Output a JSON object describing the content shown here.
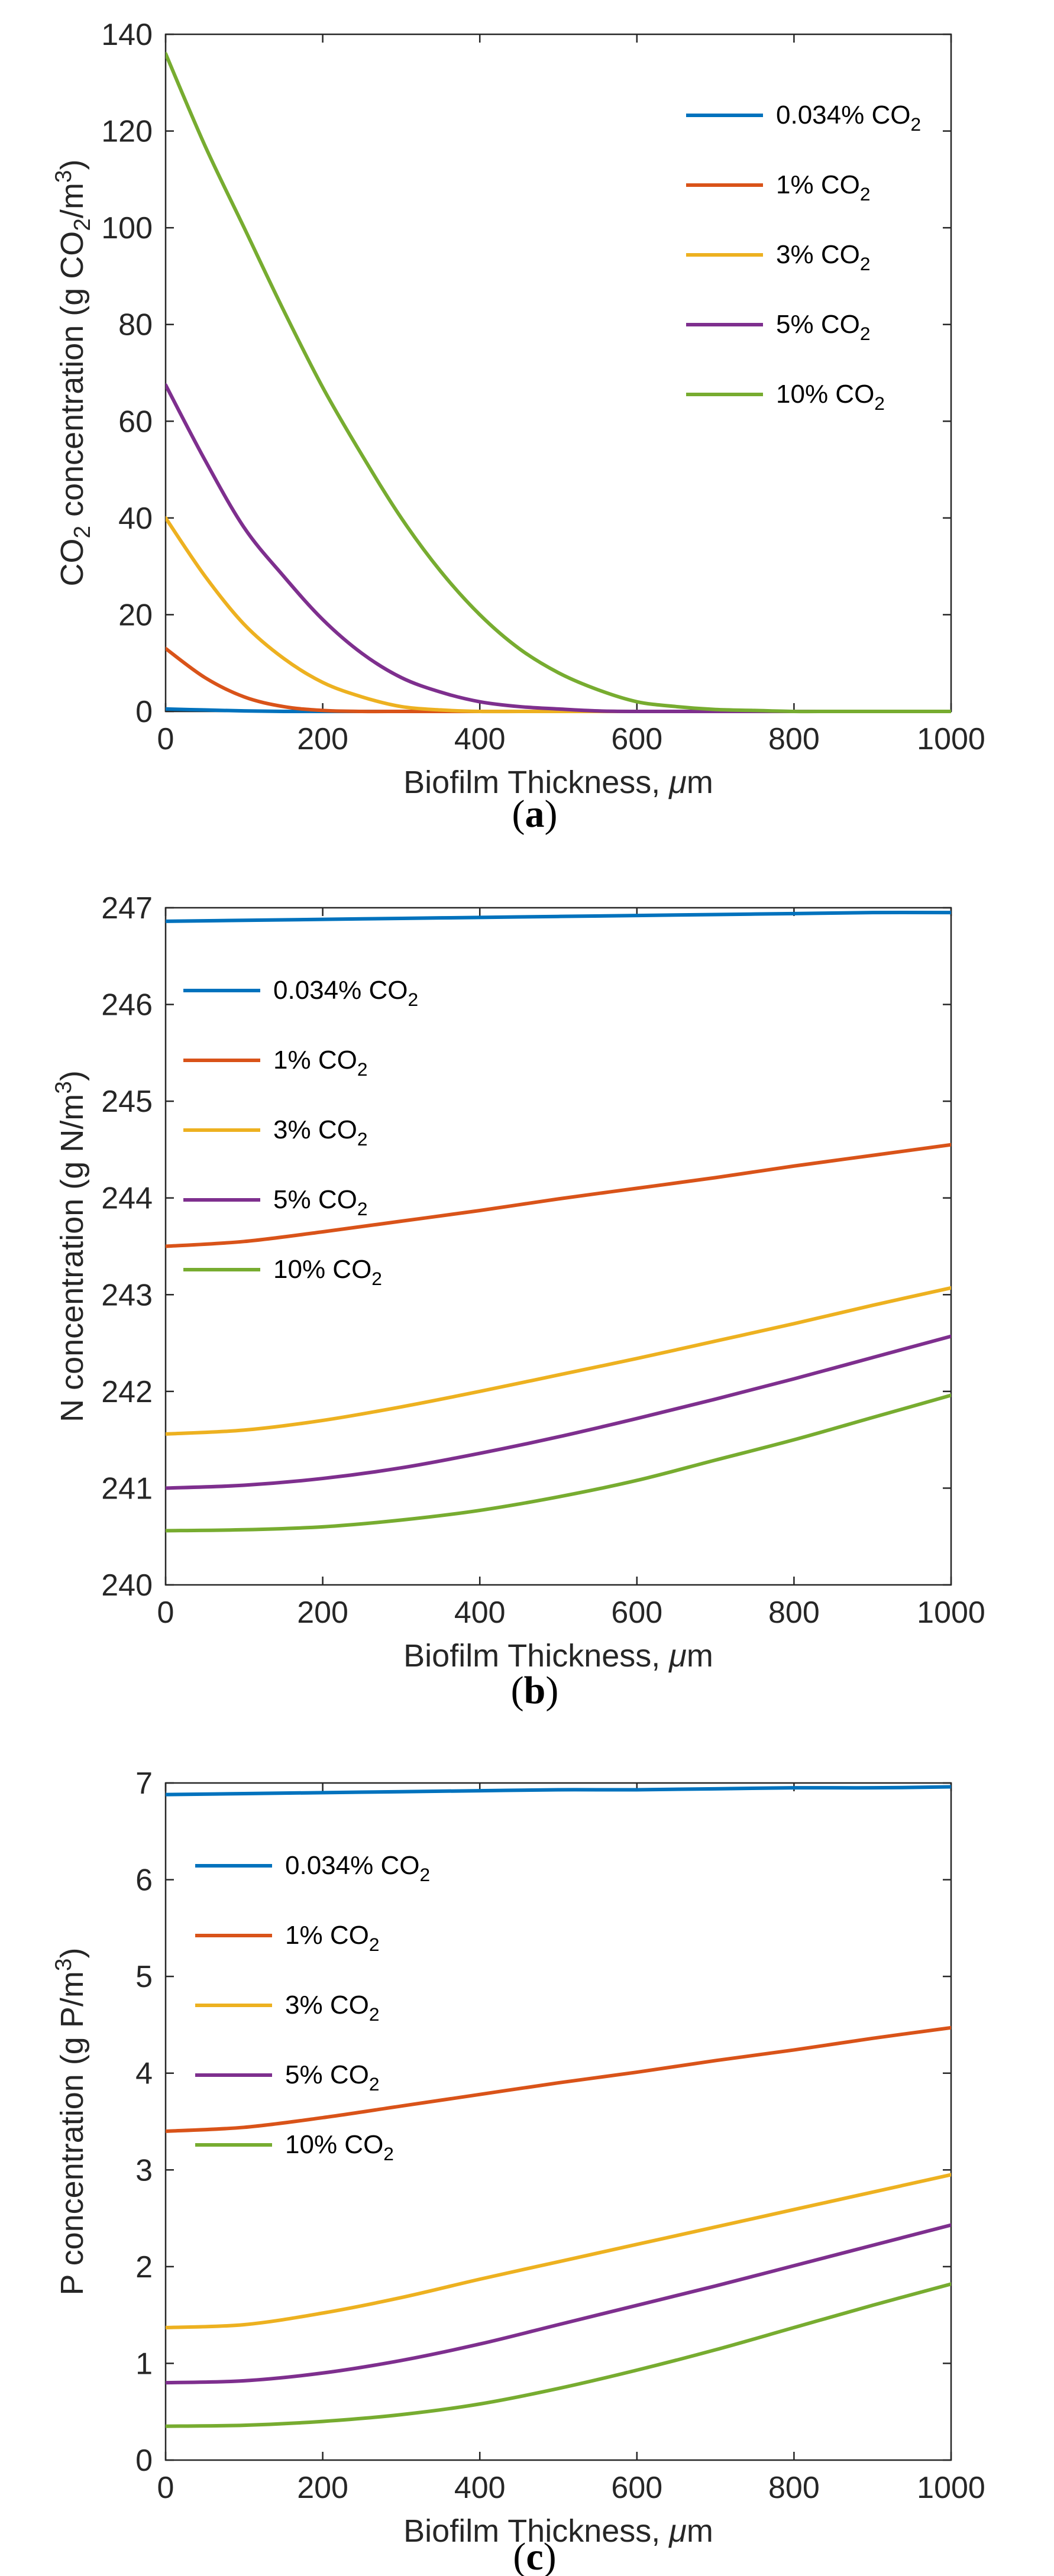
{
  "colors": {
    "series_0034": "#0072BD",
    "series_1": "#D95319",
    "series_3": "#EDB120",
    "series_5": "#7E2F8E",
    "series_10": "#77AC30",
    "axis": "#262626"
  },
  "chart_data": [
    {
      "type": "line",
      "panel": "a",
      "caption_letter": "a",
      "xlabel": "Biofilm Thickness, μm",
      "ylabel": "CO2 concentration (g CO2/m3)",
      "xlim": [
        0,
        1000
      ],
      "ylim": [
        0,
        140
      ],
      "xticks": [
        0,
        200,
        400,
        600,
        800,
        1000
      ],
      "yticks": [
        0,
        20,
        40,
        60,
        80,
        100,
        120,
        140
      ],
      "legend_position": "top-right",
      "x": [
        0,
        50,
        100,
        150,
        200,
        250,
        300,
        350,
        400,
        450,
        500,
        550,
        600,
        650,
        700,
        750,
        800,
        850,
        900,
        950,
        1000
      ],
      "series": [
        {
          "name": "0.034% CO2",
          "color_key": "series_0034",
          "values": [
            0.5,
            0.3,
            0.1,
            0,
            0,
            0,
            0,
            0,
            0,
            0,
            0,
            0,
            0,
            0,
            0,
            0,
            0,
            0,
            0,
            0,
            0
          ]
        },
        {
          "name": "1% CO2",
          "color_key": "series_1",
          "values": [
            13,
            7,
            3,
            1,
            0.2,
            0,
            0,
            0,
            0,
            0,
            0,
            0,
            0,
            0,
            0,
            0,
            0,
            0,
            0,
            0,
            0
          ]
        },
        {
          "name": "3% CO2",
          "color_key": "series_3",
          "values": [
            40,
            28,
            18,
            11,
            6,
            3,
            1,
            0.3,
            0,
            0,
            0,
            0,
            0,
            0,
            0,
            0,
            0,
            0,
            0,
            0,
            0
          ]
        },
        {
          "name": "5% CO2",
          "color_key": "series_5",
          "values": [
            67.5,
            52,
            38,
            28,
            19,
            12,
            7,
            4,
            2,
            1,
            0.5,
            0.1,
            0,
            0,
            0,
            0,
            0,
            0,
            0,
            0,
            0
          ]
        },
        {
          "name": "10% CO2",
          "color_key": "series_10",
          "values": [
            136,
            117,
            100,
            83,
            67,
            53,
            40,
            29,
            20,
            13,
            8,
            4.5,
            2,
            1,
            0.4,
            0.2,
            0,
            0,
            0,
            0,
            0
          ]
        }
      ]
    },
    {
      "type": "line",
      "panel": "b",
      "caption_letter": "b",
      "xlabel": "Biofilm Thickness, μm",
      "ylabel": "N concentration (g N/m3)",
      "xlim": [
        0,
        1000
      ],
      "ylim": [
        240,
        247
      ],
      "xticks": [
        0,
        200,
        400,
        600,
        800,
        1000
      ],
      "yticks": [
        240,
        241,
        242,
        243,
        244,
        245,
        246,
        247
      ],
      "legend_position": "top-left",
      "x": [
        0,
        100,
        200,
        300,
        400,
        500,
        600,
        700,
        800,
        900,
        1000
      ],
      "series": [
        {
          "name": "0.034% CO2",
          "color_key": "series_0034",
          "values": [
            246.86,
            246.87,
            246.88,
            246.89,
            246.9,
            246.91,
            246.92,
            246.93,
            246.94,
            246.95,
            246.95
          ]
        },
        {
          "name": "1% CO2",
          "color_key": "series_1",
          "values": [
            243.5,
            243.55,
            243.65,
            243.76,
            243.87,
            243.99,
            244.1,
            244.21,
            244.33,
            244.44,
            244.55
          ]
        },
        {
          "name": "3% CO2",
          "color_key": "series_3",
          "values": [
            241.56,
            241.6,
            241.7,
            241.84,
            242.0,
            242.17,
            242.34,
            242.52,
            242.7,
            242.89,
            243.07
          ]
        },
        {
          "name": "5% CO2",
          "color_key": "series_5",
          "values": [
            241.0,
            241.03,
            241.1,
            241.21,
            241.36,
            241.53,
            241.72,
            241.92,
            242.13,
            242.35,
            242.57
          ]
        },
        {
          "name": "10% CO2",
          "color_key": "series_10",
          "values": [
            240.56,
            240.57,
            240.6,
            240.67,
            240.77,
            240.91,
            241.08,
            241.29,
            241.5,
            241.73,
            241.96
          ]
        }
      ]
    },
    {
      "type": "line",
      "panel": "c",
      "caption_letter": "c",
      "xlabel": "Biofilm Thickness, μm",
      "ylabel": "P concentration (g P/m3)",
      "xlim": [
        0,
        1000
      ],
      "ylim": [
        0,
        7
      ],
      "xticks": [
        0,
        200,
        400,
        600,
        800,
        1000
      ],
      "yticks": [
        0,
        1,
        2,
        3,
        4,
        5,
        6,
        7
      ],
      "legend_position": "top-left",
      "x": [
        0,
        100,
        200,
        300,
        400,
        500,
        600,
        700,
        800,
        900,
        1000
      ],
      "series": [
        {
          "name": "0.034% CO2",
          "color_key": "series_0034",
          "values": [
            6.88,
            6.89,
            6.9,
            6.91,
            6.92,
            6.93,
            6.93,
            6.94,
            6.95,
            6.95,
            6.96
          ]
        },
        {
          "name": "1% CO2",
          "color_key": "series_1",
          "values": [
            3.4,
            3.44,
            3.54,
            3.66,
            3.78,
            3.9,
            4.01,
            4.13,
            4.24,
            4.36,
            4.47
          ]
        },
        {
          "name": "3% CO2",
          "color_key": "series_3",
          "values": [
            1.37,
            1.4,
            1.52,
            1.68,
            1.87,
            2.05,
            2.23,
            2.41,
            2.59,
            2.77,
            2.95
          ]
        },
        {
          "name": "5% CO2",
          "color_key": "series_5",
          "values": [
            0.8,
            0.82,
            0.9,
            1.03,
            1.2,
            1.4,
            1.6,
            1.8,
            2.01,
            2.22,
            2.43
          ]
        },
        {
          "name": "10% CO2",
          "color_key": "series_10",
          "values": [
            0.35,
            0.36,
            0.4,
            0.47,
            0.58,
            0.74,
            0.93,
            1.14,
            1.37,
            1.6,
            1.82
          ]
        }
      ]
    }
  ]
}
